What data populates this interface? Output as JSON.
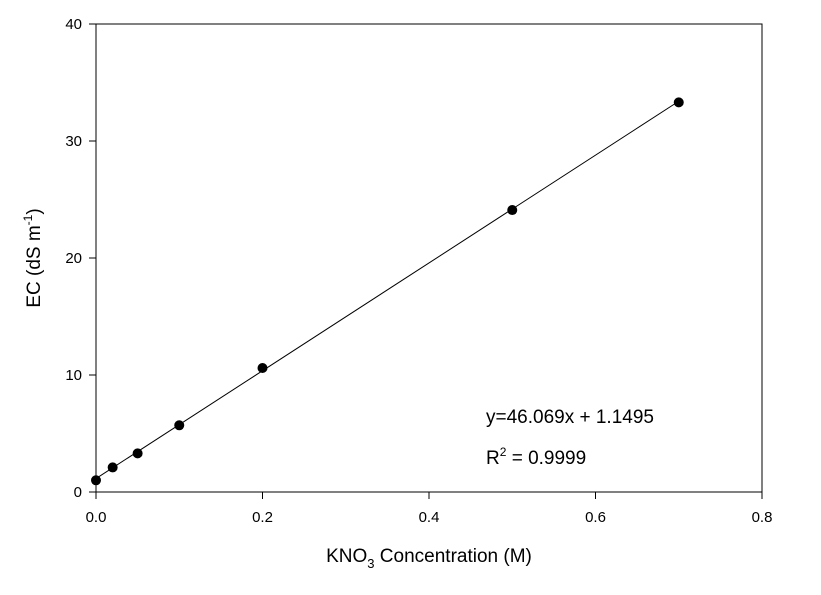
{
  "chart_data": {
    "type": "scatter",
    "title": "",
    "xlabel": {
      "main": "KNO",
      "sub": "3",
      "rest": " Concentration (M)"
    },
    "ylabel": {
      "main": "EC (dS m",
      "sup": "-1",
      "rest": ")"
    },
    "xlim": [
      0,
      0.8
    ],
    "ylim": [
      0,
      40
    ],
    "xticks": [
      0.0,
      0.2,
      0.4,
      0.6,
      0.8
    ],
    "xtick_labels": [
      "0.0",
      "0.2",
      "0.4",
      "0.6",
      "0.8"
    ],
    "yticks": [
      0,
      10,
      20,
      30,
      40
    ],
    "ytick_labels": [
      "0",
      "10",
      "20",
      "30",
      "40"
    ],
    "grid": false,
    "legend": "none",
    "colors": {
      "points": "#000000",
      "line": "#000000",
      "axes": "#000000"
    },
    "series": [
      {
        "x": [
          0.0,
          0.02,
          0.05,
          0.1,
          0.2,
          0.5,
          0.7
        ],
        "y": [
          1.0,
          2.1,
          3.3,
          5.7,
          10.6,
          24.1,
          33.3
        ]
      }
    ],
    "trendline": {
      "slope": 46.069,
      "intercept": 1.1495,
      "x_range": [
        0.0,
        0.7
      ]
    },
    "annotations": {
      "equation": "y=46.069x + 1.1495",
      "r2_main": "R",
      "r2_sup": "2",
      "r2_rest": " = 0.9999"
    }
  }
}
